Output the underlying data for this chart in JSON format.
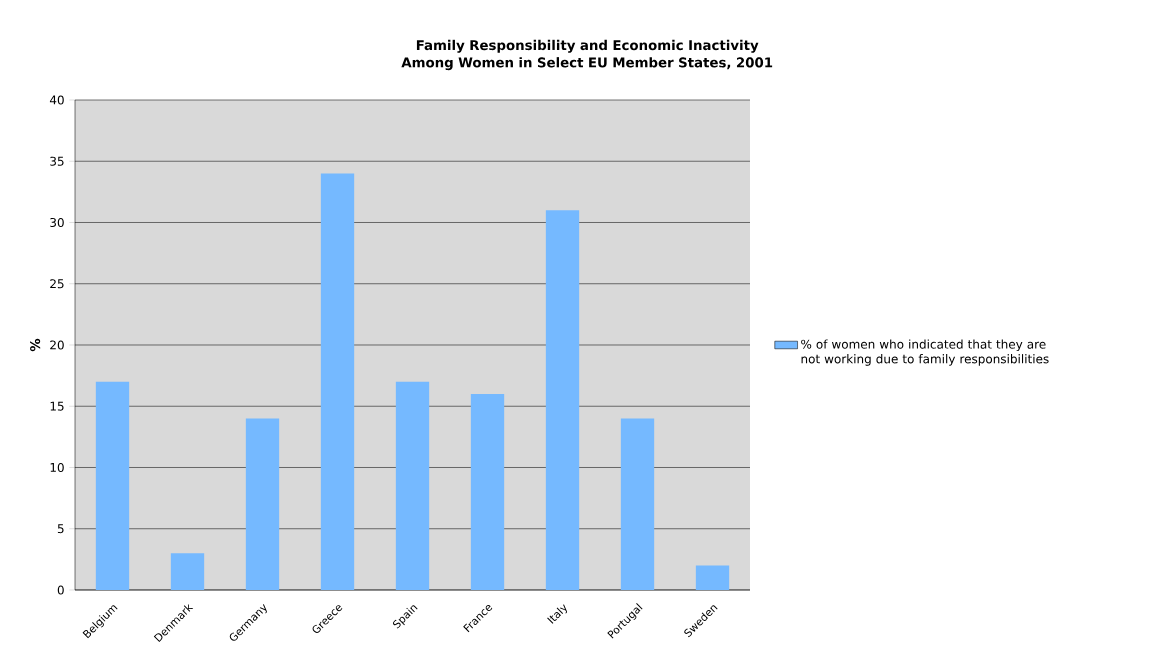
{
  "chart_data": {
    "type": "bar",
    "title": "Family Responsibility and Economic Inactivity Among Women in Select EU Member States, 2001",
    "ylabel": "%",
    "categories": [
      "Belgium",
      "Denmark",
      "Germany",
      "Greece",
      "Spain",
      "France",
      "Italy",
      "Portugal",
      "Sweden"
    ],
    "series": [
      {
        "name": "% of women who indicated that they are not working due to family responsibilities",
        "color": "#75b9ff",
        "values": [
          17,
          3,
          14,
          34,
          17,
          16,
          31,
          14,
          2
        ]
      }
    ],
    "ylim": [
      0,
      40
    ],
    "yticks": [
      0,
      5,
      10,
      15,
      20,
      25,
      30,
      35,
      40
    ],
    "grid": "y",
    "legend": "right"
  }
}
